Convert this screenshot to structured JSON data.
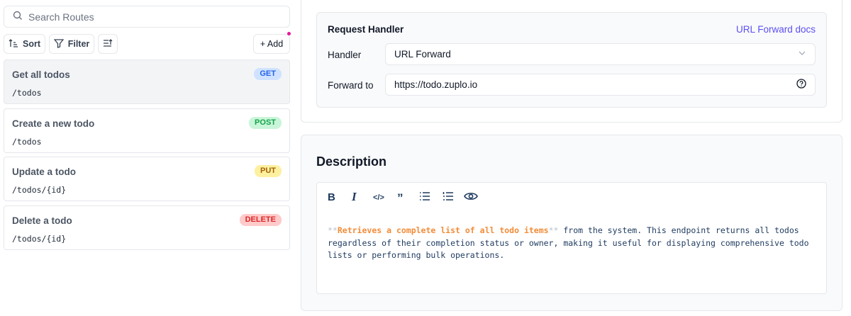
{
  "search": {
    "placeholder": "Search Routes"
  },
  "toolbar": {
    "sort_label": "Sort",
    "filter_label": "Filter",
    "add_label": "+ Add"
  },
  "routes": [
    {
      "title": "Get all todos",
      "path": "/todos",
      "method": "GET",
      "selected": true
    },
    {
      "title": "Create a new todo",
      "path": "/todos",
      "method": "POST"
    },
    {
      "title": "Update a todo",
      "path": "/todos/{id}",
      "method": "PUT"
    },
    {
      "title": "Delete a todo",
      "path": "/todos/{id}",
      "method": "DELETE"
    }
  ],
  "method_colors": {
    "GET": [
      "#cfe2ff",
      "#2563eb"
    ],
    "POST": [
      "#c9f5d9",
      "#15a34a"
    ],
    "PUT": [
      "#fdf0a0",
      "#a16207"
    ],
    "DELETE": [
      "#fecaca",
      "#dc2626"
    ]
  },
  "handler": {
    "title": "Request Handler",
    "docs_link": "URL Forward docs",
    "handler_label": "Handler",
    "handler_value": "URL Forward",
    "forward_label": "Forward to",
    "forward_value": "https://todo.zuplo.io"
  },
  "description": {
    "title": "Description",
    "marker_open": "**",
    "bold_text": "Retrieves a complete list of all todo items",
    "marker_close": "**",
    "rest": " from the system. This endpoint returns all todos regardless of their completion status or owner, making it useful for displaying comprehensive todo lists or performing bulk operations."
  }
}
